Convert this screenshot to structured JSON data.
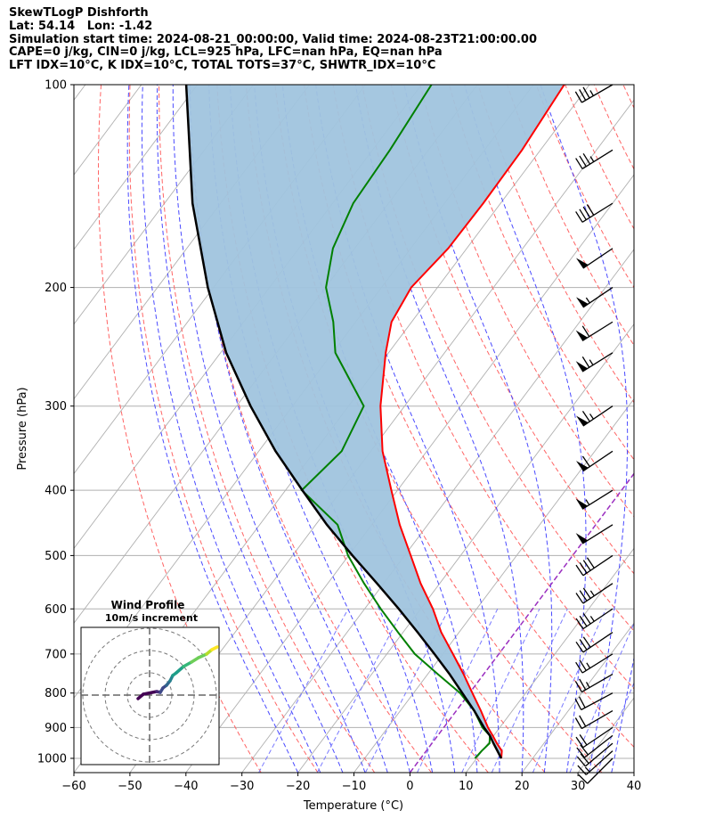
{
  "header": {
    "lines": [
      "SkewTLogP Dishforth",
      "Lat: 54.14   Lon: -1.42",
      "Simulation start time: 2024-08-21_00:00:00, Valid time: 2024-08-23T21:00:00.00",
      "CAPE=0 j/kg, CIN=0 j/kg, LCL=925 hPa, LFC=nan hPa, EQ=nan hPa",
      "LFT IDX=10°C, K IDX=10°C, TOTAL TOTS=37°C, SHWTR_IDX=10°C"
    ]
  },
  "chart_data": {
    "type": "skewt",
    "xlabel": "Temperature (°C)",
    "ylabel": "Pressure (hPa)",
    "xlim": [
      -60,
      40
    ],
    "ylim": [
      1050,
      100
    ],
    "x_ticks": [
      -60,
      -50,
      -40,
      -30,
      -20,
      -10,
      0,
      10,
      20,
      30,
      40
    ],
    "x_tick_labels": [
      "−60",
      "−50",
      "−40",
      "−30",
      "−20",
      "−10",
      "0",
      "10",
      "20",
      "30",
      "40"
    ],
    "y_ticks": [
      1000,
      900,
      800,
      700,
      600,
      500,
      400,
      300,
      200,
      100
    ],
    "y_tick_labels": [
      "1000",
      "900",
      "800",
      "700",
      "600",
      "500",
      "400",
      "300",
      "200",
      "100"
    ],
    "grid": true,
    "colors": {
      "temperature": "#ff0000",
      "dewpoint": "#008000",
      "parcel": "#000000",
      "shade": "#a0c4de",
      "dry_adiabat": "#ff6464",
      "moist_adiabat": "#4a4aff",
      "mixing_ratio": "#7a7aff",
      "isotherm": "#b0b0b0",
      "zero_isotherm": "#9b30c0"
    },
    "series": [
      {
        "pressure": [
          1000,
          975,
          950,
          925,
          900,
          850,
          800,
          750,
          700,
          650,
          600,
          550,
          500,
          450,
          400,
          350,
          300,
          250,
          225,
          200,
          175,
          150,
          125,
          100
        ],
        "values": [
          14.4,
          13.5,
          11.6,
          9.8,
          7.9,
          4.4,
          0.5,
          -3.6,
          -8.2,
          -13.2,
          -17.8,
          -23.4,
          -28.9,
          -35.0,
          -41.1,
          -47.9,
          -54.3,
          -60.5,
          -63.6,
          -64.7,
          -63.3,
          -63.1,
          -63.3,
          -64.5
        ]
      },
      {
        "pressure": [
          1000,
          975,
          950,
          925,
          900,
          850,
          800,
          750,
          700,
          650,
          600,
          550,
          500,
          450,
          400,
          350,
          300,
          250,
          225,
          200,
          175,
          150,
          125,
          100
        ],
        "values": [
          9.7,
          9.9,
          10.3,
          9.3,
          6.9,
          3.2,
          -1.7,
          -8.2,
          -15.0,
          -20.9,
          -27.1,
          -33.5,
          -40.1,
          -46.1,
          -57.1,
          -55.2,
          -57.3,
          -69.5,
          -74.0,
          -79.9,
          -83.9,
          -86.3,
          -86.9,
          -88.2
        ]
      },
      {
        "pressure": [
          1000,
          950,
          925,
          900,
          850,
          800,
          750,
          700,
          650,
          600,
          550,
          500,
          450,
          400,
          350,
          300,
          250,
          200,
          150,
          100
        ],
        "values": [
          14.4,
          11.0,
          9.3,
          7.2,
          3.2,
          -1.3,
          -6.1,
          -11.5,
          -17.4,
          -23.9,
          -31.2,
          -39.3,
          -48.0,
          -57.0,
          -67.0,
          -77.5,
          -89.0,
          -101.0,
          -115.0,
          -132.0
        ]
      }
    ],
    "wind_barbs": [
      {
        "pressure": 1000,
        "speed_kt": 10,
        "dir": 225
      },
      {
        "pressure": 975,
        "speed_kt": 15,
        "dir": 228
      },
      {
        "pressure": 950,
        "speed_kt": 20,
        "dir": 230
      },
      {
        "pressure": 925,
        "speed_kt": 20,
        "dir": 232
      },
      {
        "pressure": 900,
        "speed_kt": 20,
        "dir": 236
      },
      {
        "pressure": 850,
        "speed_kt": 20,
        "dir": 240
      },
      {
        "pressure": 800,
        "speed_kt": 20,
        "dir": 242
      },
      {
        "pressure": 750,
        "speed_kt": 25,
        "dir": 240
      },
      {
        "pressure": 700,
        "speed_kt": 25,
        "dir": 238
      },
      {
        "pressure": 650,
        "speed_kt": 30,
        "dir": 236
      },
      {
        "pressure": 600,
        "speed_kt": 35,
        "dir": 236
      },
      {
        "pressure": 550,
        "speed_kt": 35,
        "dir": 236
      },
      {
        "pressure": 500,
        "speed_kt": 40,
        "dir": 236
      },
      {
        "pressure": 450,
        "speed_kt": 50,
        "dir": 238
      },
      {
        "pressure": 400,
        "speed_kt": 55,
        "dir": 238
      },
      {
        "pressure": 350,
        "speed_kt": 60,
        "dir": 236
      },
      {
        "pressure": 300,
        "speed_kt": 65,
        "dir": 236
      },
      {
        "pressure": 250,
        "speed_kt": 65,
        "dir": 238
      },
      {
        "pressure": 225,
        "speed_kt": 60,
        "dir": 238
      },
      {
        "pressure": 200,
        "speed_kt": 55,
        "dir": 236
      },
      {
        "pressure": 175,
        "speed_kt": 50,
        "dir": 236
      },
      {
        "pressure": 150,
        "speed_kt": 40,
        "dir": 238
      },
      {
        "pressure": 125,
        "speed_kt": 35,
        "dir": 238
      },
      {
        "pressure": 100,
        "speed_kt": 35,
        "dir": 240
      }
    ],
    "inset": {
      "title": "Wind Profile",
      "subtitle": "10m/s increment",
      "ring_count": 3,
      "hodograph": [
        [
          -1.3,
          -0.4
        ],
        [
          -0.7,
          0.1
        ],
        [
          0.8,
          0.4
        ],
        [
          1.2,
          0.3
        ],
        [
          1.5,
          0.8
        ],
        [
          1.9,
          1.1
        ],
        [
          2.3,
          1.6
        ],
        [
          2.6,
          2.2
        ],
        [
          3.0,
          2.5
        ],
        [
          3.8,
          3.2
        ],
        [
          4.7,
          3.7
        ],
        [
          5.5,
          4.2
        ],
        [
          6.4,
          4.6
        ],
        [
          7.0,
          5.1
        ],
        [
          7.6,
          5.4
        ]
      ]
    }
  }
}
